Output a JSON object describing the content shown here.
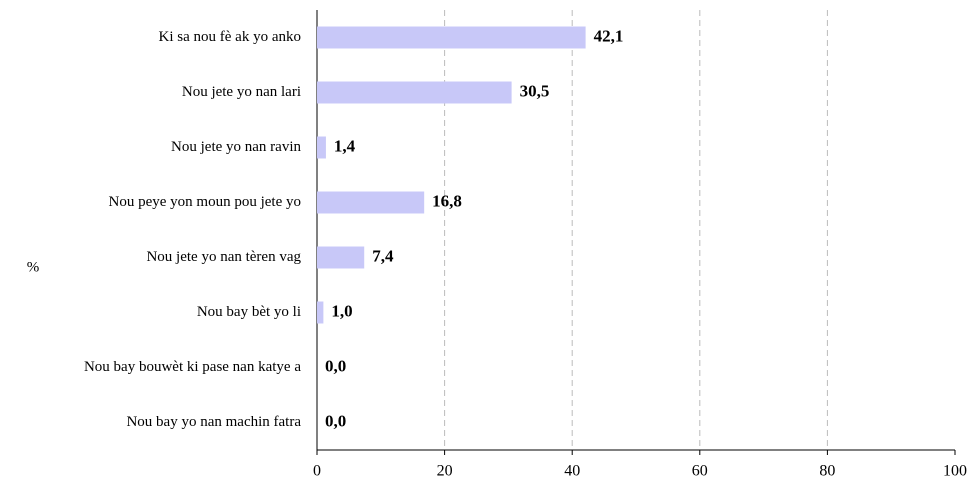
{
  "chart_data": {
    "type": "bar",
    "orientation": "horizontal",
    "y_label": "%",
    "categories": [
      "Ki sa nou fè ak yo anko",
      "Nou jete yo nan lari",
      "Nou jete yo nan ravin",
      "Nou peye yon moun pou jete yo",
      "Nou jete yo nan tèren vag",
      "Nou bay bèt yo li",
      "Nou bay bouwèt ki pase nan katye a",
      "Nou bay yo nan machin fatra"
    ],
    "values": [
      42.1,
      30.5,
      1.4,
      16.8,
      7.4,
      1.0,
      0.0,
      0.0
    ],
    "value_labels": [
      "42,1",
      "30,5",
      "1,4",
      "16,8",
      "7,4",
      "1,0",
      "0,0",
      "0,0"
    ],
    "color": "#c8c8f8",
    "xlim": [
      0,
      100
    ],
    "xticks": [
      0,
      20,
      40,
      60,
      80,
      100
    ],
    "grid": true
  }
}
